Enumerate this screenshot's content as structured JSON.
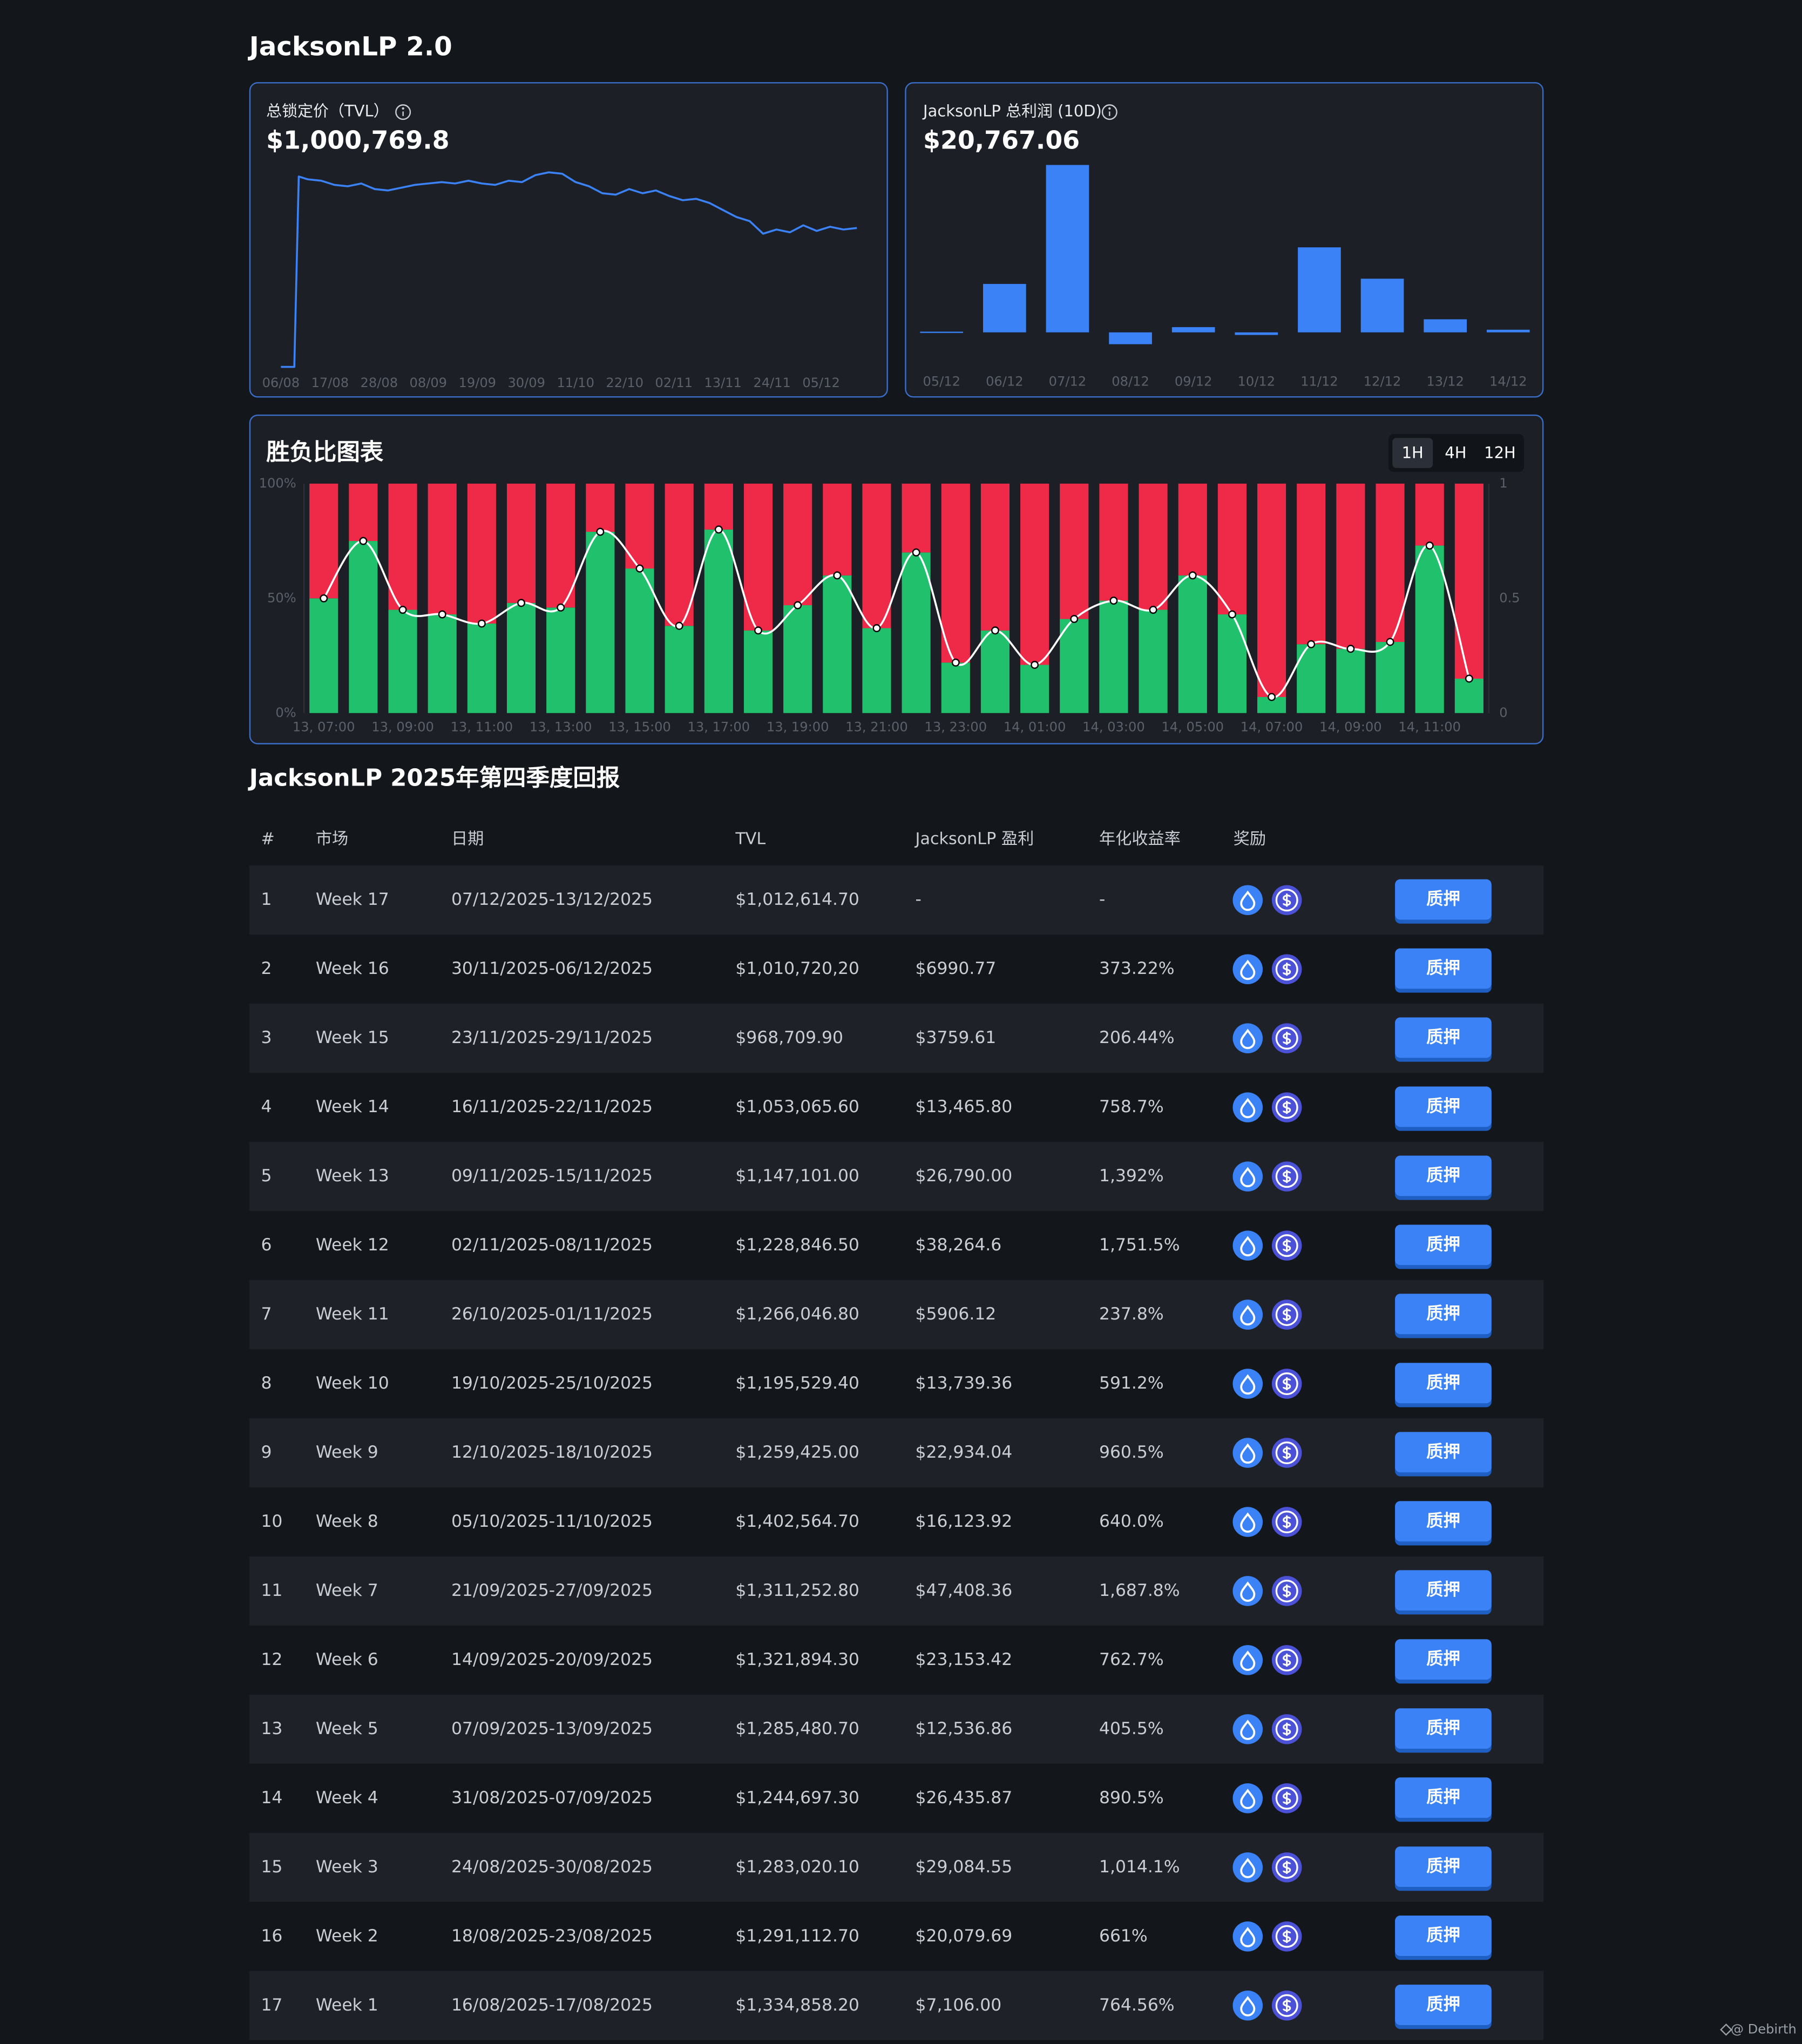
{
  "header": {
    "title": "JacksonLP 2.0"
  },
  "chart_data": [
    {
      "type": "line",
      "title": "总锁定价（TVL）",
      "headline": "$1,000,769.8",
      "color": "#3b82f6",
      "x": [
        "06/08",
        "09/08",
        "10/08",
        "12/08",
        "15/08",
        "18/08",
        "21/08",
        "24/08",
        "27/08",
        "30/08",
        "02/09",
        "05/09",
        "08/09",
        "11/09",
        "14/09",
        "17/09",
        "20/09",
        "23/09",
        "26/09",
        "29/09",
        "02/10",
        "05/10",
        "08/10",
        "11/10",
        "14/10",
        "17/10",
        "20/10",
        "23/10",
        "26/10",
        "29/10",
        "01/11",
        "04/11",
        "07/11",
        "10/11",
        "13/11",
        "16/11",
        "19/11",
        "22/11",
        "25/11",
        "28/11",
        "01/12",
        "04/12",
        "07/12",
        "10/12",
        "13/12"
      ],
      "values": [
        5000,
        5000,
        1370000,
        1350000,
        1340000,
        1310000,
        1300000,
        1320000,
        1280000,
        1270000,
        1290000,
        1310000,
        1320000,
        1330000,
        1320000,
        1340000,
        1320000,
        1310000,
        1340000,
        1330000,
        1380000,
        1400000,
        1390000,
        1330000,
        1300000,
        1250000,
        1240000,
        1280000,
        1250000,
        1270000,
        1230000,
        1200000,
        1210000,
        1180000,
        1130000,
        1080000,
        1050000,
        960000,
        990000,
        970000,
        1020000,
        980000,
        1010000,
        990000,
        1000769.8
      ],
      "xlim": [
        "03/08",
        "15/12"
      ],
      "xticks": [
        "06/08",
        "17/08",
        "28/08",
        "08/09",
        "19/09",
        "30/09",
        "11/10",
        "22/10",
        "02/11",
        "13/11",
        "24/11",
        "05/12"
      ],
      "ylim": [
        0,
        1500000
      ]
    },
    {
      "type": "bar",
      "title": "JacksonLP 总利润 (10D)",
      "headline": "$20,767.06",
      "color": "#3b82f6",
      "categories": [
        "05/12",
        "06/12",
        "07/12",
        "08/12",
        "09/12",
        "10/12",
        "11/12",
        "12/12",
        "13/12",
        "14/12"
      ],
      "values": [
        40,
        2780,
        9610,
        -680,
        300,
        -150,
        4880,
        3080,
        750,
        150
      ],
      "ylim": [
        -1500,
        9800
      ]
    },
    {
      "type": "stacked_bar",
      "title": "胜负比图表",
      "intervals": [
        "1H",
        "4H",
        "12H"
      ],
      "active_interval_index": 0,
      "categories": [
        "13, 07:00",
        null,
        "13, 09:00",
        null,
        "13, 11:00",
        null,
        "13, 13:00",
        null,
        "13, 15:00",
        null,
        "13, 17:00",
        null,
        "13, 19:00",
        null,
        "13, 21:00",
        null,
        "13, 23:00",
        null,
        "14, 01:00",
        null,
        "14, 03:00",
        null,
        "14, 05:00",
        null,
        "14, 07:00",
        null,
        "14, 09:00",
        null,
        "14, 11:00",
        null
      ],
      "series": [
        {
          "color": "#20c06c",
          "values": [
            50,
            75,
            45,
            43,
            39,
            48,
            46,
            79,
            63,
            38,
            80,
            36,
            47,
            60,
            37,
            70,
            22,
            36,
            21,
            41,
            49,
            45,
            60,
            43,
            7,
            30,
            28,
            31,
            73,
            15
          ]
        },
        {
          "color": "#ee2a48",
          "values": [
            50,
            25,
            55,
            57,
            61,
            52,
            54,
            21,
            37,
            62,
            20,
            64,
            53,
            40,
            63,
            30,
            78,
            64,
            79,
            59,
            51,
            55,
            40,
            57,
            93,
            70,
            72,
            69,
            27,
            85
          ]
        },
        {
          "type": "line",
          "axis": "y2",
          "color": "#ffffff",
          "values": [
            0.5,
            0.75,
            0.45,
            0.43,
            0.39,
            0.48,
            0.46,
            0.79,
            0.63,
            0.38,
            0.8,
            0.36,
            0.47,
            0.6,
            0.37,
            0.7,
            0.22,
            0.36,
            0.21,
            0.41,
            0.49,
            0.45,
            0.6,
            0.43,
            0.07,
            0.3,
            0.28,
            0.31,
            0.73,
            0.15
          ]
        }
      ],
      "ylim": [
        0,
        100
      ],
      "yticks": [
        {
          "value": 0,
          "label": "0%"
        },
        {
          "value": 50,
          "label": "50%"
        },
        {
          "value": 100,
          "label": "100%"
        }
      ],
      "y2lim": [
        0,
        1
      ],
      "y2ticks": [
        0,
        0.5,
        1
      ]
    }
  ],
  "section": {
    "title": "JacksonLP 2025年第四季度回报"
  },
  "table": {
    "columns": [
      "#",
      "市场",
      "日期",
      "TVL",
      "JacksonLP 盈利",
      "年化收益率",
      "奖励"
    ],
    "action": "质押",
    "rows": [
      [
        "1",
        "Week 17",
        "07/12/2025-13/12/2025",
        "$1,012,614.70",
        "-",
        "-"
      ],
      [
        "2",
        "Week 16",
        "30/11/2025-06/12/2025",
        "$1,010,720,20",
        "$6990.77",
        "373.22%"
      ],
      [
        "3",
        "Week 15",
        "23/11/2025-29/11/2025",
        "$968,709.90",
        "$3759.61",
        "206.44%"
      ],
      [
        "4",
        "Week 14",
        "16/11/2025-22/11/2025",
        "$1,053,065.60",
        "$13,465.80",
        "758.7%"
      ],
      [
        "5",
        "Week 13",
        "09/11/2025-15/11/2025",
        "$1,147,101.00",
        "$26,790.00",
        "1,392%"
      ],
      [
        "6",
        "Week 12",
        "02/11/2025-08/11/2025",
        "$1,228,846.50",
        "$38,264.6",
        "1,751.5%"
      ],
      [
        "7",
        "Week 11",
        "26/10/2025-01/11/2025",
        "$1,266,046.80",
        "$5906.12",
        "237.8%"
      ],
      [
        "8",
        "Week 10",
        "19/10/2025-25/10/2025",
        "$1,195,529.40",
        "$13,739.36",
        "591.2%"
      ],
      [
        "9",
        "Week 9",
        "12/10/2025-18/10/2025",
        "$1,259,425.00",
        "$22,934.04",
        "960.5%"
      ],
      [
        "10",
        "Week 8",
        "05/10/2025-11/10/2025",
        "$1,402,564.70",
        "$16,123.92",
        "640.0%"
      ],
      [
        "11",
        "Week 7",
        "21/09/2025-27/09/2025",
        "$1,311,252.80",
        "$47,408.36",
        "1,687.8%"
      ],
      [
        "12",
        "Week 6",
        "14/09/2025-20/09/2025",
        "$1,321,894.30",
        "$23,153.42",
        "762.7%"
      ],
      [
        "13",
        "Week 5",
        "07/09/2025-13/09/2025",
        "$1,285,480.70",
        "$12,536.86",
        "405.5%"
      ],
      [
        "14",
        "Week 4",
        "31/08/2025-07/09/2025",
        "$1,244,697.30",
        "$26,435.87",
        "890.5%"
      ],
      [
        "15",
        "Week 3",
        "24/08/2025-30/08/2025",
        "$1,283,020.10",
        "$29,084.55",
        "1,014.1%"
      ],
      [
        "16",
        "Week 2",
        "18/08/2025-23/08/2025",
        "$1,291,112.70",
        "$20,079.69",
        "661%"
      ],
      [
        "17",
        "Week 1",
        "16/08/2025-17/08/2025",
        "$1,334,858.20",
        "$7,106.00",
        "764.56%"
      ]
    ]
  },
  "footer": {
    "watermark": "@ Debirth"
  }
}
